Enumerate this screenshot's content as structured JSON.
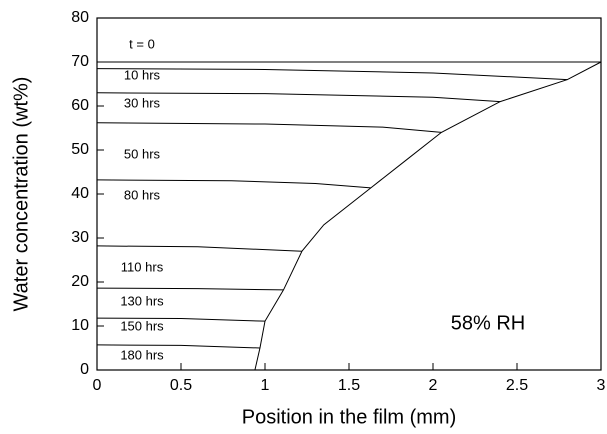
{
  "chart_data": {
    "type": "line",
    "xlabel": "Position in the film (mm)",
    "ylabel": "Water concentration (wt%)",
    "annotation": "58% RH",
    "xlim": [
      0,
      3
    ],
    "ylim": [
      0,
      80
    ],
    "xticks": [
      0,
      0.5,
      1,
      1.5,
      2,
      2.5,
      3
    ],
    "yticks": [
      0,
      10,
      20,
      30,
      40,
      50,
      60,
      70,
      80
    ],
    "color": "#000000",
    "series": [
      {
        "name": "t = 0",
        "x": [
          0,
          3
        ],
        "values": [
          70,
          70
        ]
      },
      {
        "name": "10 hrs",
        "x": [
          0,
          1,
          2,
          2.8
        ],
        "values": [
          68.5,
          68.3,
          67.5,
          66
        ]
      },
      {
        "name": "30 hrs",
        "x": [
          0,
          1,
          2,
          2.4
        ],
        "values": [
          63,
          62.8,
          62,
          61
        ]
      },
      {
        "name": "50 hrs",
        "x": [
          0,
          1,
          1.7,
          2.05
        ],
        "values": [
          56.2,
          55.9,
          55.2,
          54
        ]
      },
      {
        "name": "80 hrs",
        "x": [
          0,
          0.8,
          1.3,
          1.63
        ],
        "values": [
          43.2,
          43,
          42.4,
          41.4
        ]
      },
      {
        "name": "110 hrs",
        "x": [
          0,
          0.6,
          1.22
        ],
        "values": [
          28.2,
          28,
          27
        ]
      },
      {
        "name": "130 hrs",
        "x": [
          0,
          0.6,
          1.11
        ],
        "values": [
          18.6,
          18.5,
          18.2
        ]
      },
      {
        "name": "150 hrs",
        "x": [
          0,
          0.5,
          1.0
        ],
        "values": [
          11.8,
          11.7,
          11.1
        ]
      },
      {
        "name": "180 hrs",
        "x": [
          0,
          0.5,
          0.97
        ],
        "values": [
          5.7,
          5.6,
          5
        ]
      }
    ],
    "boundary": {
      "x": [
        0.94,
        0.97,
        1.0,
        1.11,
        1.22,
        1.35,
        1.63,
        1.85,
        2.05,
        2.4,
        2.8,
        3
      ],
      "values": [
        0,
        5,
        11.1,
        18.2,
        27,
        33,
        41.4,
        48,
        54,
        61,
        66,
        70
      ]
    }
  }
}
